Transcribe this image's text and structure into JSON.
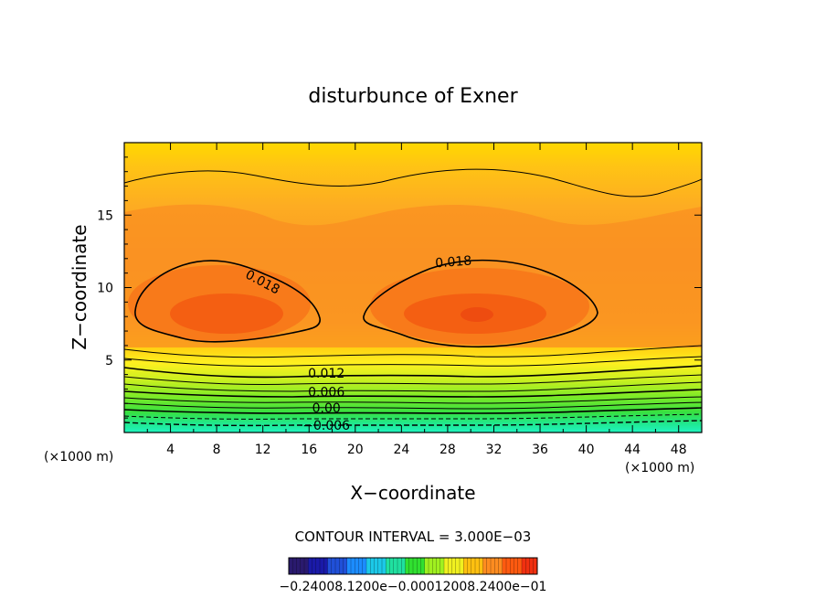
{
  "chart_data": {
    "type": "contour",
    "title": "disturbunce of Exner",
    "xlabel": "X−coordinate",
    "ylabel": "Z−coordinate",
    "x_unit_left": "(×1000 m)",
    "x_unit_right": "(×1000 m)",
    "xlim": [
      0,
      50
    ],
    "ylim": [
      0,
      20
    ],
    "xticks": [
      "4",
      "8",
      "12",
      "16",
      "20",
      "24",
      "28",
      "32",
      "36",
      "40",
      "44",
      "48"
    ],
    "xtick_values": [
      4,
      8,
      12,
      16,
      20,
      24,
      28,
      32,
      36,
      40,
      44,
      48
    ],
    "yticks": [
      "5",
      "10",
      "15"
    ],
    "ytick_values": [
      5,
      10,
      15
    ],
    "contour_interval_text": "CONTOUR INTERVAL = 3.000E−03",
    "contour_labels": [
      {
        "text": "0.018",
        "x": 12,
        "z": 10.4
      },
      {
        "text": "0.018",
        "x": 28.5,
        "z": 11.8
      },
      {
        "text": "0.012",
        "x": 17.5,
        "z": 4.1
      },
      {
        "text": "0.006",
        "x": 17.5,
        "z": 2.8
      },
      {
        "text": "0.00",
        "x": 17.5,
        "z": 1.7
      },
      {
        "text": "−0.006",
        "x": 17.5,
        "z": 0.5
      }
    ],
    "colorbar_label_text": "−0.24008.1200e−0.00012008.2400e−01",
    "colorbar_colors": [
      "#2a1a6e",
      "#1a1aa8",
      "#2050d8",
      "#1c8cff",
      "#1cc8e8",
      "#20e0a0",
      "#30e030",
      "#a0f020",
      "#f0f020",
      "#ffc010",
      "#ff8c20",
      "#ff5a10",
      "#f03010"
    ],
    "colors": {
      "bg_top": "#ffd800",
      "orange_mid": "#fba224",
      "orange_deep": "#f96c12",
      "yellow": "#fff020",
      "green_yellow": "#b8f020",
      "green": "#38e83a",
      "teal": "#20f0b4"
    }
  }
}
